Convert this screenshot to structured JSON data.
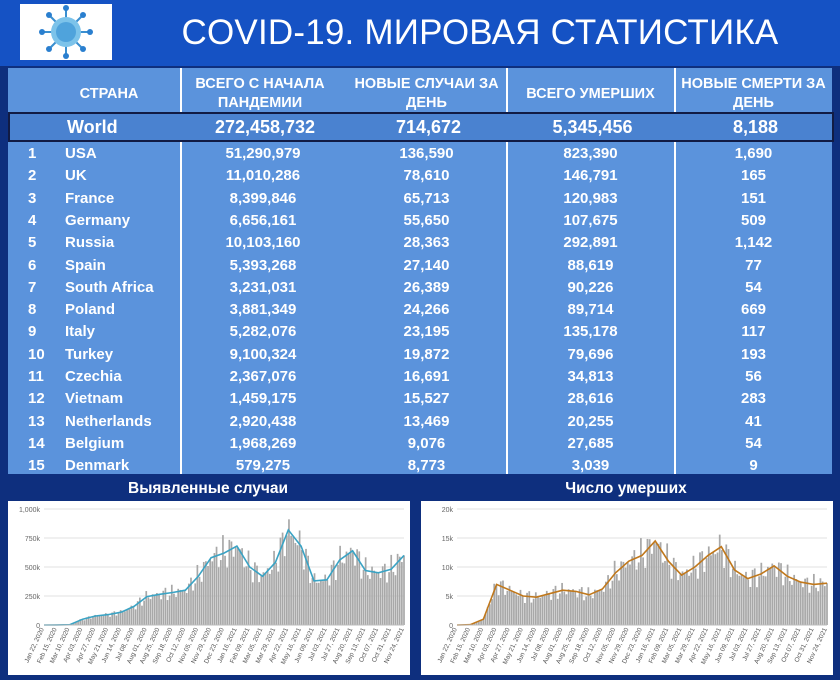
{
  "header": {
    "title": "COVID-19. МИРОВАЯ СТАТИСТИКА",
    "logo": "virus-icon"
  },
  "table": {
    "columns": {
      "country": "СТРАНА",
      "total": "ВСЕГО С НАЧАЛА ПАНДЕМИИ",
      "new_cases": "НОВЫЕ СЛУЧАИ ЗА ДЕНЬ",
      "deaths": "ВСЕГО УМЕРШИХ",
      "new_deaths": "НОВЫЕ СМЕРТИ ЗА ДЕНЬ"
    },
    "world": {
      "name": "World",
      "total": "272,458,732",
      "new_cases": "714,672",
      "deaths": "5,345,456",
      "new_deaths": "8,188"
    },
    "rows": [
      {
        "rank": "1",
        "country": "USA",
        "total": "51,290,979",
        "new_cases": "136,590",
        "deaths": "823,390",
        "new_deaths": "1,690"
      },
      {
        "rank": "2",
        "country": "UK",
        "total": "11,010,286",
        "new_cases": "78,610",
        "deaths": "146,791",
        "new_deaths": "165"
      },
      {
        "rank": "3",
        "country": "France",
        "total": "8,399,846",
        "new_cases": "65,713",
        "deaths": "120,983",
        "new_deaths": "151"
      },
      {
        "rank": "4",
        "country": "Germany",
        "total": "6,656,161",
        "new_cases": "55,650",
        "deaths": "107,675",
        "new_deaths": "509"
      },
      {
        "rank": "5",
        "country": "Russia",
        "total": "10,103,160",
        "new_cases": "28,363",
        "deaths": "292,891",
        "new_deaths": "1,142"
      },
      {
        "rank": "6",
        "country": "Spain",
        "total": "5,393,268",
        "new_cases": "27,140",
        "deaths": "88,619",
        "new_deaths": "77"
      },
      {
        "rank": "7",
        "country": "South Africa",
        "total": "3,231,031",
        "new_cases": "26,389",
        "deaths": "90,226",
        "new_deaths": "54"
      },
      {
        "rank": "8",
        "country": "Poland",
        "total": "3,881,349",
        "new_cases": "24,266",
        "deaths": "89,714",
        "new_deaths": "669"
      },
      {
        "rank": "9",
        "country": "Italy",
        "total": "5,282,076",
        "new_cases": "23,195",
        "deaths": "135,178",
        "new_deaths": "117"
      },
      {
        "rank": "10",
        "country": "Turkey",
        "total": "9,100,324",
        "new_cases": "19,872",
        "deaths": "79,696",
        "new_deaths": "193"
      },
      {
        "rank": "11",
        "country": "Czechia",
        "total": "2,367,076",
        "new_cases": "16,691",
        "deaths": "34,813",
        "new_deaths": "56"
      },
      {
        "rank": "12",
        "country": "Vietnam",
        "total": "1,459,175",
        "new_cases": "15,527",
        "deaths": "28,616",
        "new_deaths": "283"
      },
      {
        "rank": "13",
        "country": "Netherlands",
        "total": "2,920,438",
        "new_cases": "13,469",
        "deaths": "20,255",
        "new_deaths": "41"
      },
      {
        "rank": "14",
        "country": "Belgium",
        "total": "1,968,269",
        "new_cases": "9,076",
        "deaths": "27,685",
        "new_deaths": "54"
      },
      {
        "rank": "15",
        "country": "Denmark",
        "total": "579,275",
        "new_cases": "8,773",
        "deaths": "3,039",
        "new_deaths": "9"
      }
    ]
  },
  "colors": {
    "header_bg": "#1552c4",
    "table_bg": "#5b93dc",
    "page_bg": "#0e2f7e",
    "cases_bar": "#a8a8a8",
    "cases_line": "#3aa3c4",
    "deaths_bar": "#a8a8a8",
    "deaths_line": "#c0781c"
  },
  "chart_data": [
    {
      "type": "bar",
      "title": "Выявленные случаи",
      "ylim": [
        0,
        1000000
      ],
      "yticks": [
        "0",
        "250k",
        "500k",
        "750k",
        "1,000k"
      ],
      "grid": true,
      "xticks": [
        "Jan 22, 2020",
        "Feb 15, 2020",
        "Mar 10, 2020",
        "Apr 03, 2020",
        "Apr 27, 2020",
        "May 21, 2020",
        "Jun 14, 2020",
        "Jul 08, 2020",
        "Aug 01, 2020",
        "Aug 25, 2020",
        "Sep 18, 2020",
        "Oct 12, 2020",
        "Nov 05, 2020",
        "Nov 29, 2020",
        "Dec 23, 2020",
        "Jan 16, 2021",
        "Feb 09, 2021",
        "Mar 05, 2021",
        "Mar 29, 2021",
        "Apr 22, 2021",
        "May 16, 2021",
        "Jun 09, 2021",
        "Jul 03, 2021",
        "Jul 27, 2021",
        "Aug 20, 2021",
        "Sep 13, 2021",
        "Oct 07, 2021",
        "Oct 31, 2021",
        "Nov 24, 2021"
      ],
      "series": [
        {
          "type": "bar",
          "values": [
            0,
            1000,
            3000,
            50000,
            78000,
            90000,
            110000,
            160000,
            245000,
            265000,
            280000,
            300000,
            420000,
            580000,
            620000,
            680000,
            500000,
            420000,
            540000,
            820000,
            680000,
            380000,
            390000,
            560000,
            640000,
            470000,
            450000,
            480000,
            600000
          ]
        },
        {
          "type": "line",
          "values": [
            0,
            1000,
            3000,
            50000,
            78000,
            90000,
            110000,
            160000,
            245000,
            265000,
            280000,
            300000,
            420000,
            580000,
            620000,
            680000,
            500000,
            420000,
            540000,
            820000,
            680000,
            380000,
            390000,
            560000,
            640000,
            470000,
            450000,
            480000,
            600000
          ]
        }
      ]
    },
    {
      "type": "bar",
      "title": "Число умерших",
      "ylim": [
        0,
        20000
      ],
      "yticks": [
        "0",
        "5k",
        "10k",
        "15k",
        "20k"
      ],
      "grid": true,
      "xticks": [
        "Jan 22, 2020",
        "Feb 15, 2020",
        "Mar 10, 2020",
        "Apr 03, 2020",
        "Apr 27, 2020",
        "May 21, 2020",
        "Jun 14, 2020",
        "Jul 08, 2020",
        "Aug 01, 2020",
        "Aug 25, 2020",
        "Sep 18, 2020",
        "Oct 12, 2020",
        "Nov 05, 2020",
        "Nov 29, 2020",
        "Dec 23, 2020",
        "Jan 16, 2021",
        "Feb 09, 2021",
        "Mar 05, 2021",
        "Mar 29, 2021",
        "Apr 22, 2021",
        "May 16, 2021",
        "Jun 09, 2021",
        "Jul 03, 2021",
        "Jul 27, 2021",
        "Aug 20, 2021",
        "Sep 13, 2021",
        "Oct 07, 2021",
        "Oct 31, 2021",
        "Nov 24, 2021"
      ],
      "series": [
        {
          "type": "bar",
          "values": [
            0,
            50,
            1000,
            7000,
            6000,
            5000,
            4800,
            5400,
            6000,
            5800,
            5200,
            6200,
            9000,
            11000,
            12000,
            14500,
            11000,
            8600,
            10000,
            12000,
            13500,
            9500,
            8000,
            8800,
            10200,
            8400,
            7400,
            7000,
            7200
          ]
        },
        {
          "type": "line",
          "values": [
            0,
            50,
            1000,
            7000,
            6000,
            5000,
            4800,
            5400,
            6000,
            5800,
            5200,
            6200,
            9000,
            11000,
            12000,
            14500,
            11000,
            8600,
            10000,
            12000,
            13500,
            9500,
            8000,
            8800,
            10200,
            8400,
            7400,
            7000,
            7200
          ]
        }
      ]
    }
  ]
}
